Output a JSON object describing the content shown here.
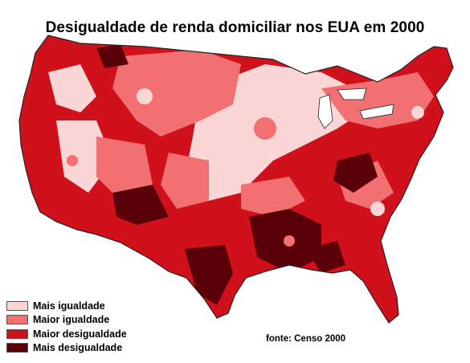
{
  "title": "Desigualdade de renda domiciliar nos EUA em 2000",
  "source_note": "fonte: Censo 2000",
  "legend": [
    {
      "label": "Mais igualdade",
      "color": "#fbd6d6"
    },
    {
      "label": "Maior igualdade",
      "color": "#f26f72"
    },
    {
      "label": "Maior desigualdade",
      "color": "#d0101a"
    },
    {
      "label": "Mais desigualdade",
      "color": "#5a0008"
    }
  ],
  "colors": {
    "outline": "#222222",
    "water": "#ffffff"
  }
}
